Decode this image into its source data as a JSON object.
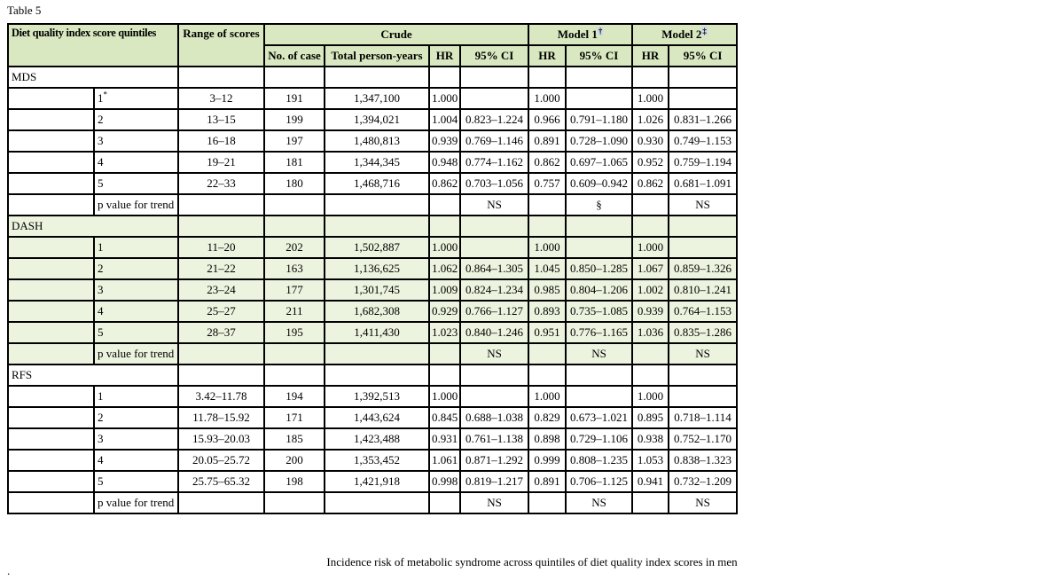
{
  "page_title": "Table 5",
  "caption": "Incidence risk of metabolic syndrome across quintiles of diet quality index scores in men",
  "trailing_period": ".",
  "colors": {
    "header_bg": "#d9e8c0",
    "shaded_row_bg": "#ecf3de",
    "footnote_marker_bg": "#cbdbea",
    "border": "#000000",
    "text": "#000000"
  },
  "table": {
    "header": {
      "col_quintiles": "Diet quality index score quintiles",
      "col_range": "Range of scores",
      "group_crude": "Crude",
      "group_model1": "Model 1",
      "group_model1_sup": "†",
      "group_model2": "Model 2",
      "group_model2_sup": "‡",
      "sub": [
        "No. of case",
        "Total person-years",
        "HR",
        "95% CI",
        "HR",
        "95% CI",
        "HR",
        "95% CI"
      ]
    },
    "sections": [
      {
        "name": "MDS",
        "shaded": false,
        "rows": [
          {
            "quintile": "1",
            "sup": "*",
            "range": "3–12",
            "cases": "191",
            "person_years": "1,347,100",
            "crude_hr": "1.000",
            "crude_ci": "",
            "m1_hr": "1.000",
            "m1_ci": "",
            "m2_hr": "1.000",
            "m2_ci": ""
          },
          {
            "quintile": "2",
            "sup": "",
            "range": "13–15",
            "cases": "199",
            "person_years": "1,394,021",
            "crude_hr": "1.004",
            "crude_ci": "0.823–1.224",
            "m1_hr": "0.966",
            "m1_ci": "0.791–1.180",
            "m2_hr": "1.026",
            "m2_ci": "0.831–1.266"
          },
          {
            "quintile": "3",
            "sup": "",
            "range": "16–18",
            "cases": "197",
            "person_years": "1,480,813",
            "crude_hr": "0.939",
            "crude_ci": "0.769–1.146",
            "m1_hr": "0.891",
            "m1_ci": "0.728–1.090",
            "m2_hr": "0.930",
            "m2_ci": "0.749–1.153"
          },
          {
            "quintile": "4",
            "sup": "",
            "range": "19–21",
            "cases": "181",
            "person_years": "1,344,345",
            "crude_hr": "0.948",
            "crude_ci": "0.774–1.162",
            "m1_hr": "0.862",
            "m1_ci": "0.697–1.065",
            "m2_hr": "0.952",
            "m2_ci": "0.759–1.194"
          },
          {
            "quintile": "5",
            "sup": "",
            "range": "22–33",
            "cases": "180",
            "person_years": "1,468,716",
            "crude_hr": "0.862",
            "crude_ci": "0.703–1.056",
            "m1_hr": "0.757",
            "m1_ci": "0.609–0.942",
            "m2_hr": "0.862",
            "m2_ci": "0.681–1.091"
          }
        ],
        "trend": {
          "label": "p value for trend",
          "crude": "NS",
          "m1": "§",
          "m2": "NS"
        }
      },
      {
        "name": "DASH",
        "shaded": true,
        "rows": [
          {
            "quintile": "1",
            "sup": "",
            "range": "11–20",
            "cases": "202",
            "person_years": "1,502,887",
            "crude_hr": "1.000",
            "crude_ci": "",
            "m1_hr": "1.000",
            "m1_ci": "",
            "m2_hr": "1.000",
            "m2_ci": ""
          },
          {
            "quintile": "2",
            "sup": "",
            "range": "21–22",
            "cases": "163",
            "person_years": "1,136,625",
            "crude_hr": "1.062",
            "crude_ci": "0.864–1.305",
            "m1_hr": "1.045",
            "m1_ci": "0.850–1.285",
            "m2_hr": "1.067",
            "m2_ci": "0.859–1.326"
          },
          {
            "quintile": "3",
            "sup": "",
            "range": "23–24",
            "cases": "177",
            "person_years": "1,301,745",
            "crude_hr": "1.009",
            "crude_ci": "0.824–1.234",
            "m1_hr": "0.985",
            "m1_ci": "0.804–1.206",
            "m2_hr": "1.002",
            "m2_ci": "0.810–1.241"
          },
          {
            "quintile": "4",
            "sup": "",
            "range": "25–27",
            "cases": "211",
            "person_years": "1,682,308",
            "crude_hr": "0.929",
            "crude_ci": "0.766–1.127",
            "m1_hr": "0.893",
            "m1_ci": "0.735–1.085",
            "m2_hr": "0.939",
            "m2_ci": "0.764–1.153"
          },
          {
            "quintile": "5",
            "sup": "",
            "range": "28–37",
            "cases": "195",
            "person_years": "1,411,430",
            "crude_hr": "1.023",
            "crude_ci": "0.840–1.246",
            "m1_hr": "0.951",
            "m1_ci": "0.776–1.165",
            "m2_hr": "1.036",
            "m2_ci": "0.835–1.286"
          }
        ],
        "trend": {
          "label": "p value for trend",
          "crude": "NS",
          "m1": "NS",
          "m2": "NS"
        }
      },
      {
        "name": "RFS",
        "shaded": false,
        "rows": [
          {
            "quintile": "1",
            "sup": "",
            "range": "3.42–11.78",
            "cases": "194",
            "person_years": "1,392,513",
            "crude_hr": "1.000",
            "crude_ci": "",
            "m1_hr": "1.000",
            "m1_ci": "",
            "m2_hr": "1.000",
            "m2_ci": ""
          },
          {
            "quintile": "2",
            "sup": "",
            "range": "11.78–15.92",
            "cases": "171",
            "person_years": "1,443,624",
            "crude_hr": "0.845",
            "crude_ci": "0.688–1.038",
            "m1_hr": "0.829",
            "m1_ci": "0.673–1.021",
            "m2_hr": "0.895",
            "m2_ci": "0.718–1.114"
          },
          {
            "quintile": "3",
            "sup": "",
            "range": "15.93–20.03",
            "cases": "185",
            "person_years": "1,423,488",
            "crude_hr": "0.931",
            "crude_ci": "0.761–1.138",
            "m1_hr": "0.898",
            "m1_ci": "0.729–1.106",
            "m2_hr": "0.938",
            "m2_ci": "0.752–1.170"
          },
          {
            "quintile": "4",
            "sup": "",
            "range": "20.05–25.72",
            "cases": "200",
            "person_years": "1,353,452",
            "crude_hr": "1.061",
            "crude_ci": "0.871–1.292",
            "m1_hr": "0.999",
            "m1_ci": "0.808–1.235",
            "m2_hr": "1.053",
            "m2_ci": "0.838–1.323"
          },
          {
            "quintile": "5",
            "sup": "",
            "range": "25.75–65.32",
            "cases": "198",
            "person_years": "1,421,918",
            "crude_hr": "0.998",
            "crude_ci": "0.819–1.217",
            "m1_hr": "0.891",
            "m1_ci": "0.706–1.125",
            "m2_hr": "0.941",
            "m2_ci": "0.732–1.209"
          }
        ],
        "trend": {
          "label": "p value for trend",
          "crude": "NS",
          "m1": "NS",
          "m2": "NS"
        }
      }
    ]
  }
}
